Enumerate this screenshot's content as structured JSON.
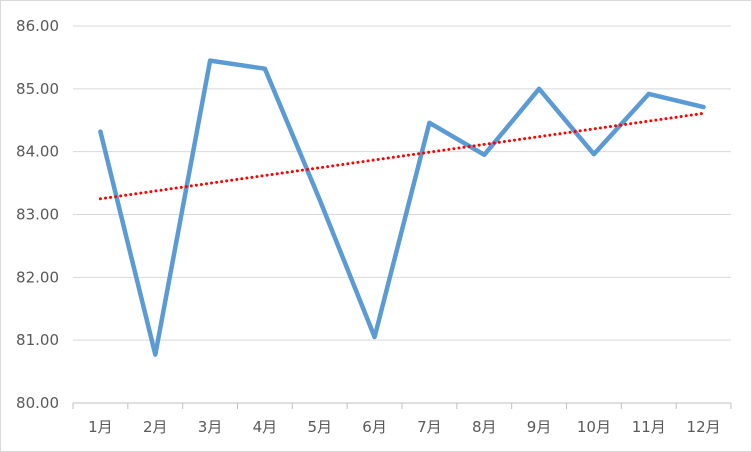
{
  "chart_data": {
    "type": "line",
    "title": "",
    "xlabel": "",
    "ylabel": "",
    "categories": [
      "1月",
      "2月",
      "3月",
      "4月",
      "5月",
      "6月",
      "7月",
      "8月",
      "9月",
      "10月",
      "11月",
      "12月"
    ],
    "series": [
      {
        "values": [
          84.32,
          80.77,
          85.45,
          85.32,
          83.23,
          81.05,
          84.46,
          83.95,
          85.0,
          83.96,
          84.92,
          84.71
        ],
        "color": "#5b9bd5"
      }
    ],
    "trendline": {
      "type": "linear",
      "start": 83.25,
      "end": 84.61,
      "color": "#ff0000",
      "style": "dotted"
    },
    "ylim": [
      80.0,
      86.0
    ],
    "yticks": [
      "80.00",
      "81.00",
      "82.00",
      "83.00",
      "84.00",
      "85.00",
      "86.00"
    ],
    "grid": true,
    "legend": "none"
  }
}
